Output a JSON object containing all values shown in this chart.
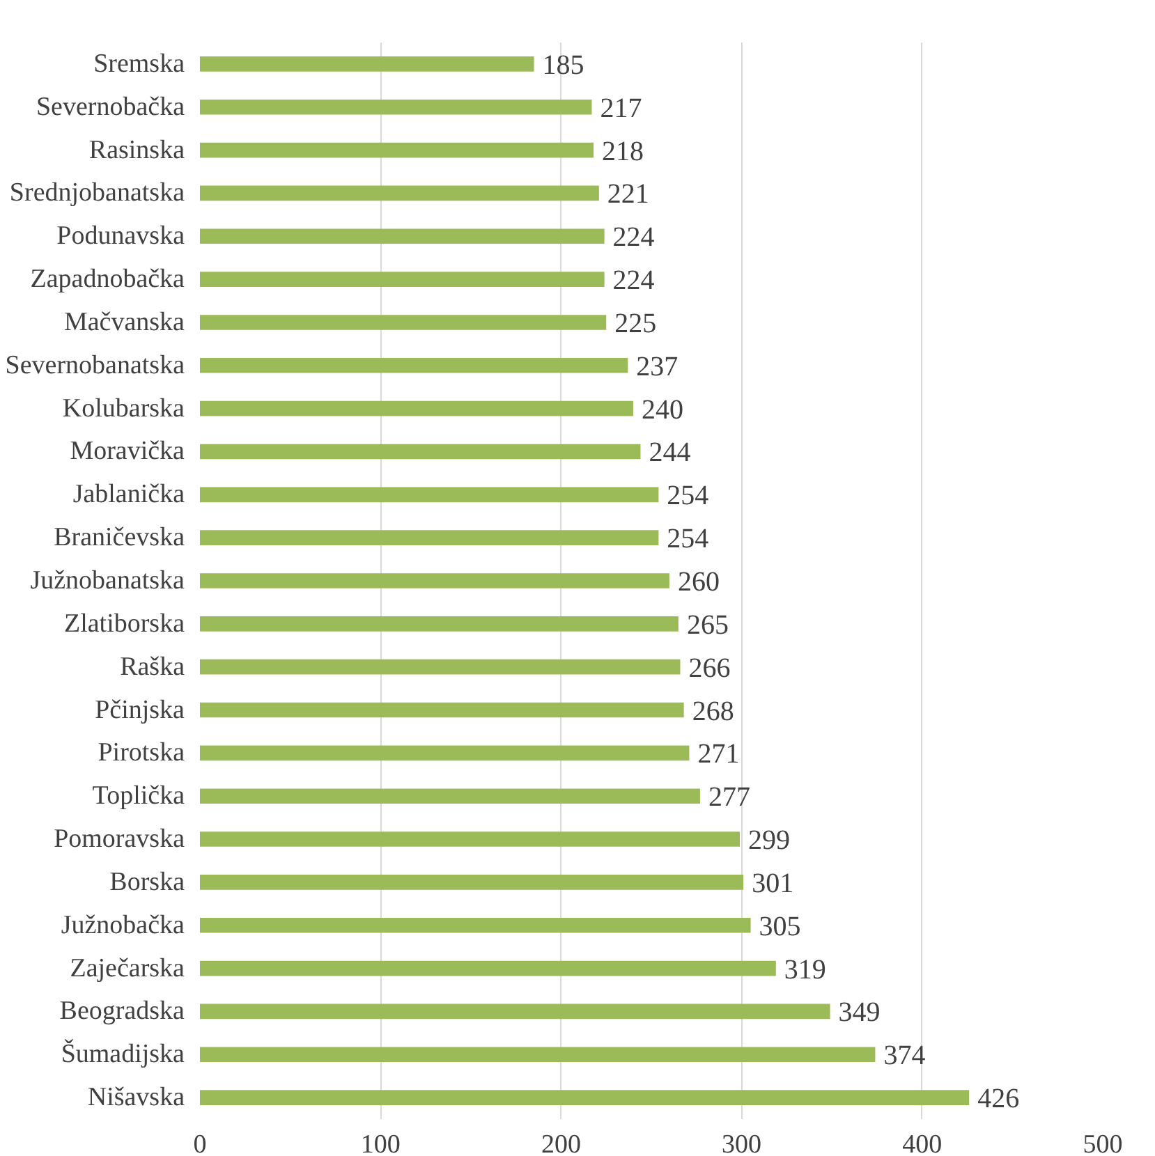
{
  "chart_data": {
    "type": "bar",
    "orientation": "horizontal",
    "categories": [
      "Sremska",
      "Severnobačka",
      "Rasinska",
      "Srednjobanatska",
      "Podunavska",
      "Zapadnobačka",
      "Mačvanska",
      "Severnobanatska",
      "Kolubarska",
      "Moravička",
      "Jablanička",
      "Braničevska",
      "Južnobanatska",
      "Zlatiborska",
      "Raška",
      "Pčinjska",
      "Pirotska",
      "Toplička",
      "Pomoravska",
      "Borska",
      "Južnobačka",
      "Zaječarska",
      "Beogradska",
      "Šumadijska",
      "Nišavska"
    ],
    "values": [
      185,
      217,
      218,
      221,
      224,
      224,
      225,
      237,
      240,
      244,
      254,
      254,
      260,
      265,
      266,
      268,
      271,
      277,
      299,
      301,
      305,
      319,
      349,
      374,
      426
    ],
    "color": "#9bbb59",
    "xlim": [
      0,
      500
    ],
    "xticks": [
      0,
      100,
      200,
      300,
      400,
      500
    ],
    "grid": "x",
    "data_labels": true
  }
}
